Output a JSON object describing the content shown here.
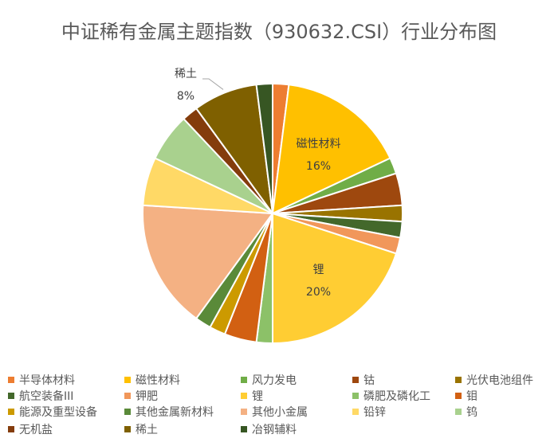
{
  "chart_data": {
    "type": "pie",
    "title": "中证稀有金属主题指数（930632.CSI）行业分布图",
    "legend_position": "bottom",
    "series": [
      {
        "name": "半导体材料",
        "value": 2,
        "color": "#ED7D31"
      },
      {
        "name": "磁性材料",
        "value": 16,
        "color": "#FFC000",
        "label": "磁性材料",
        "label_value": "16%"
      },
      {
        "name": "风力发电",
        "value": 2,
        "color": "#70AD47"
      },
      {
        "name": "钴",
        "value": 4,
        "color": "#9E480E"
      },
      {
        "name": "光伏电池组件",
        "value": 2,
        "color": "#997300"
      },
      {
        "name": "航空装备III",
        "value": 2,
        "color": "#43682B"
      },
      {
        "name": "钾肥",
        "value": 2,
        "color": "#F1975A"
      },
      {
        "name": "锂",
        "value": 20,
        "color": "#FFCD33",
        "label": "锂",
        "label_value": "20%"
      },
      {
        "name": "磷肥及磷化工",
        "value": 2,
        "color": "#8CC168"
      },
      {
        "name": "钼",
        "value": 4,
        "color": "#D26012"
      },
      {
        "name": "能源及重型设备",
        "value": 2,
        "color": "#CC9A00"
      },
      {
        "name": "其他金属新材料",
        "value": 2,
        "color": "#5A8A39"
      },
      {
        "name": "其他小金属",
        "value": 16,
        "color": "#F4B183"
      },
      {
        "name": "铅锌",
        "value": 6,
        "color": "#FFD966"
      },
      {
        "name": "钨",
        "value": 6,
        "color": "#A9D18E"
      },
      {
        "name": "无机盐",
        "value": 2,
        "color": "#843C0C"
      },
      {
        "name": "稀土",
        "value": 8,
        "color": "#7F6000",
        "label": "稀土",
        "label_value": "8%"
      },
      {
        "name": "冶钢辅料",
        "value": 2,
        "color": "#375623"
      }
    ]
  }
}
